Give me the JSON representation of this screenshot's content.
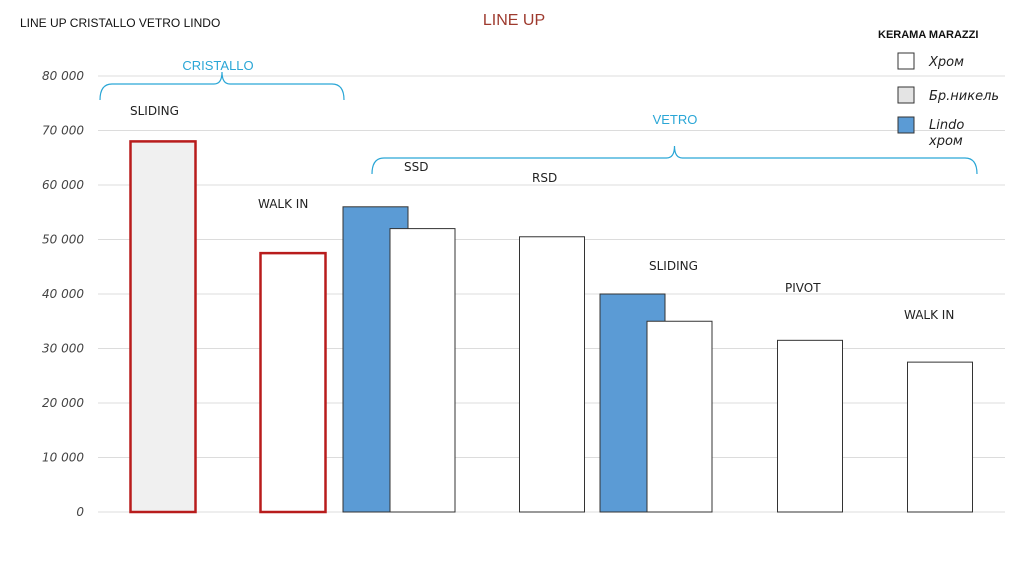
{
  "corner_title": "LINE UP CRISTALLO VETRO LINDO",
  "chart_data": {
    "type": "bar",
    "title": "LINE UP",
    "xlabel": "",
    "ylabel": "",
    "ylim": [
      0,
      80000
    ],
    "y_ticks": [
      0,
      10000,
      20000,
      30000,
      40000,
      50000,
      60000,
      70000,
      80000
    ],
    "y_tick_labels": [
      "0",
      "10 000",
      "20 000",
      "30 000",
      "40 000",
      "50 000",
      "60 000",
      "70 000",
      "80 000"
    ],
    "grid": true,
    "legend": {
      "title": "KERAMA MARAZZI",
      "placement": "top-right",
      "entries": [
        {
          "label": "Хром",
          "fill": "#ffffff",
          "stroke": "#333333"
        },
        {
          "label": "Бр.никель",
          "fill": "#e4e4e4",
          "stroke": "#333333"
        },
        {
          "label": "Lindo хром",
          "fill": "#5b9bd5",
          "stroke": "#333333"
        }
      ]
    },
    "brackets": [
      {
        "label": "CRISTALLO",
        "from_group": 0,
        "to_group": 1
      },
      {
        "label": "VETRO",
        "from_group": 2,
        "to_group": 6
      }
    ],
    "groups": [
      {
        "label": "SLIDING",
        "bars": [
          {
            "value": 68000,
            "fill": "#f0f0f0",
            "stroke": "#b81c1c"
          }
        ]
      },
      {
        "label": "WALK IN",
        "bars": [
          {
            "value": 47500,
            "fill": "#ffffff",
            "stroke": "#b81c1c"
          }
        ]
      },
      {
        "label": "SSD",
        "bars": [
          {
            "value": 56000,
            "fill": "#5b9bd5",
            "stroke": "#333333"
          },
          {
            "value": 52000,
            "fill": "#ffffff",
            "stroke": "#333333"
          }
        ]
      },
      {
        "label": "RSD",
        "bars": [
          {
            "value": 50500,
            "fill": "#ffffff",
            "stroke": "#333333"
          }
        ]
      },
      {
        "label": "SLIDING",
        "bars": [
          {
            "value": 40000,
            "fill": "#5b9bd5",
            "stroke": "#333333"
          },
          {
            "value": 35000,
            "fill": "#ffffff",
            "stroke": "#333333"
          }
        ]
      },
      {
        "label": "PIVOT",
        "bars": [
          {
            "value": 31500,
            "fill": "#ffffff",
            "stroke": "#333333"
          }
        ]
      },
      {
        "label": "WALK IN",
        "bars": [
          {
            "value": 27500,
            "fill": "#ffffff",
            "stroke": "#333333"
          }
        ]
      }
    ]
  }
}
